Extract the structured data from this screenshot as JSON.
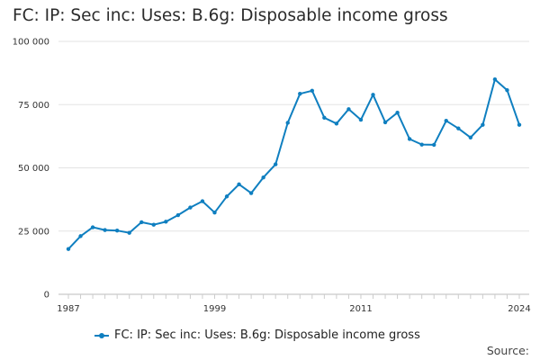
{
  "chart_data": {
    "type": "line",
    "title": "FC: IP: Sec inc: Uses: B.6g: Disposable income gross",
    "xlabel": "",
    "ylabel": "",
    "x": [
      1987,
      1988,
      1989,
      1990,
      1991,
      1992,
      1993,
      1994,
      1995,
      1996,
      1997,
      1998,
      1999,
      2000,
      2001,
      2002,
      2003,
      2004,
      2005,
      2006,
      2007,
      2008,
      2009,
      2010,
      2011,
      2012,
      2013,
      2014,
      2015,
      2016,
      2017,
      2018,
      2019,
      2020,
      2021,
      2022,
      2023,
      2024
    ],
    "series": [
      {
        "name": "FC: IP: Sec inc: Uses: B.6g: Disposable income gross",
        "color": "#0f7fc0",
        "values": [
          17900,
          23000,
          26500,
          25400,
          25200,
          24300,
          28500,
          27500,
          28700,
          31300,
          34300,
          36800,
          32300,
          38700,
          43500,
          40000,
          46200,
          51400,
          67800,
          79300,
          80500,
          69800,
          67500,
          73200,
          69000,
          78900,
          68000,
          71800,
          61400,
          59200,
          59100,
          68600,
          65600,
          62000,
          67000,
          85000,
          80700,
          67000
        ]
      }
    ],
    "x_ticks": [
      "1987",
      "1999",
      "2011",
      "2024"
    ],
    "y_ticks": [
      "0",
      "25 000",
      "50 000",
      "75 000",
      "100 000"
    ],
    "ylim": [
      0,
      100000
    ],
    "grid": "horizontal",
    "legend_position": "bottom",
    "source_label": "Source:"
  }
}
